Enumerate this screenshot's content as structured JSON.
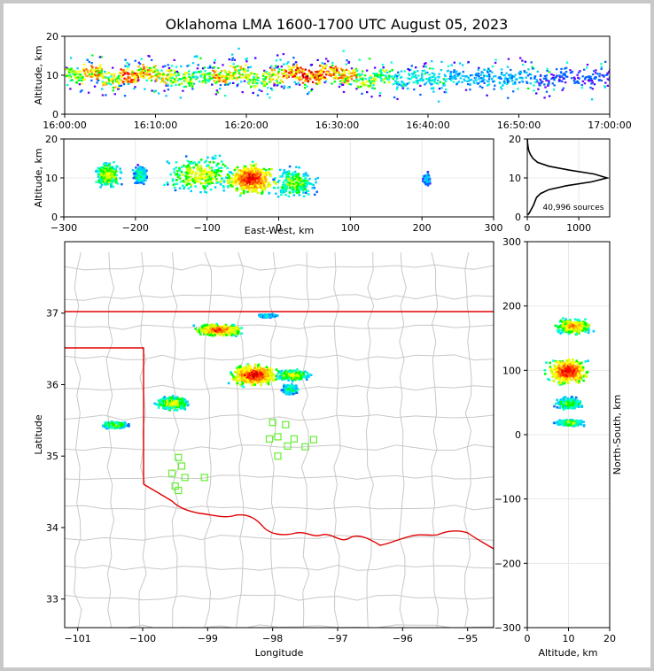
{
  "title": "Oklahoma LMA 1600-1700 UTC August 05, 2023",
  "chart_data": [
    {
      "id": "altitude-time",
      "type": "heatmap",
      "ylabel": "Altitude, km",
      "xlim": [
        "16:00:00",
        "17:00:00"
      ],
      "ylim": [
        0,
        20
      ],
      "x_ticks": [
        "16:00:00",
        "16:10:00",
        "16:20:00",
        "16:30:00",
        "16:40:00",
        "16:50:00",
        "17:00:00"
      ],
      "y_ticks": [
        "0",
        "10",
        "20"
      ],
      "cells": [
        {
          "t": 0,
          "z": 10,
          "v": 6
        },
        {
          "t": 2,
          "z": 11,
          "v": 8
        },
        {
          "t": 4,
          "z": 9,
          "v": 7
        },
        {
          "t": 6,
          "z": 10,
          "v": 9
        },
        {
          "t": 8,
          "z": 11,
          "v": 8
        },
        {
          "t": 10,
          "z": 10,
          "v": 7
        },
        {
          "t": 12,
          "z": 9,
          "v": 6
        },
        {
          "t": 14,
          "z": 10,
          "v": 5
        },
        {
          "t": 16,
          "z": 10,
          "v": 8
        },
        {
          "t": 18,
          "z": 11,
          "v": 7
        },
        {
          "t": 20,
          "z": 9,
          "v": 6
        },
        {
          "t": 22,
          "z": 10,
          "v": 7
        },
        {
          "t": 24,
          "z": 11,
          "v": 9
        },
        {
          "t": 26,
          "z": 10,
          "v": 10
        },
        {
          "t": 28,
          "z": 11,
          "v": 9
        },
        {
          "t": 30,
          "z": 10,
          "v": 8
        },
        {
          "t": 32,
          "z": 9,
          "v": 6
        },
        {
          "t": 34,
          "z": 10,
          "v": 5
        },
        {
          "t": 36,
          "z": 9,
          "v": 4
        },
        {
          "t": 38,
          "z": 10,
          "v": 4
        },
        {
          "t": 40,
          "z": 9,
          "v": 4
        },
        {
          "t": 42,
          "z": 10,
          "v": 3
        },
        {
          "t": 44,
          "z": 9,
          "v": 3
        },
        {
          "t": 46,
          "z": 10,
          "v": 3
        },
        {
          "t": 48,
          "z": 9,
          "v": 3
        },
        {
          "t": 50,
          "z": 10,
          "v": 3
        },
        {
          "t": 52,
          "z": 9,
          "v": 2
        },
        {
          "t": 54,
          "z": 10,
          "v": 2
        },
        {
          "t": 56,
          "z": 9,
          "v": 2
        },
        {
          "t": 58,
          "z": 10,
          "v": 2
        }
      ]
    },
    {
      "id": "altitude-east-west",
      "type": "heatmap",
      "xlabel": "East-West, km",
      "ylabel": "Altitude, km",
      "xlim": [
        -300,
        300
      ],
      "ylim": [
        0,
        20
      ],
      "x_ticks": [
        "−300",
        "−200",
        "−100",
        "0",
        "100",
        "200",
        "300"
      ],
      "y_ticks": [
        "0",
        "10",
        "20"
      ],
      "blobs": [
        {
          "x": -240,
          "z": 11,
          "rx": 22,
          "rz": 4,
          "v": 6
        },
        {
          "x": -195,
          "z": 11,
          "rx": 12,
          "rz": 3,
          "v": 4
        },
        {
          "x": -110,
          "z": 11,
          "rx": 60,
          "rz": 6,
          "v": 6
        },
        {
          "x": -40,
          "z": 10,
          "rx": 45,
          "rz": 5,
          "v": 10
        },
        {
          "x": 20,
          "z": 9,
          "rx": 35,
          "rz": 5,
          "v": 5
        },
        {
          "x": 205,
          "z": 10,
          "rx": 6,
          "rz": 2,
          "v": 2
        }
      ]
    },
    {
      "id": "altitude-histogram",
      "type": "line",
      "annotation": "40,996 sources",
      "xlim": [
        0,
        1600
      ],
      "ylim": [
        0,
        20
      ],
      "x_ticks": [
        "0",
        "1000"
      ],
      "y_ticks": [
        "0",
        "10",
        "20"
      ],
      "profile": [
        {
          "z": 0.5,
          "n": 10
        },
        {
          "z": 1,
          "n": 40
        },
        {
          "z": 2,
          "n": 80
        },
        {
          "z": 3,
          "n": 120
        },
        {
          "z": 4,
          "n": 150
        },
        {
          "z": 5,
          "n": 180
        },
        {
          "z": 6,
          "n": 260
        },
        {
          "z": 7,
          "n": 420
        },
        {
          "z": 8,
          "n": 760
        },
        {
          "z": 9,
          "n": 1250
        },
        {
          "z": 10,
          "n": 1550
        },
        {
          "z": 11,
          "n": 1300
        },
        {
          "z": 12,
          "n": 820
        },
        {
          "z": 13,
          "n": 420
        },
        {
          "z": 14,
          "n": 200
        },
        {
          "z": 15,
          "n": 110
        },
        {
          "z": 16,
          "n": 60
        },
        {
          "z": 17,
          "n": 30
        },
        {
          "z": 18,
          "n": 15
        },
        {
          "z": 19,
          "n": 6
        },
        {
          "z": 20,
          "n": 2
        }
      ]
    },
    {
      "id": "plan-view",
      "type": "heatmap",
      "xlabel": "Longitude",
      "ylabel": "Latitude",
      "xlim": [
        -101.2,
        -94.6
      ],
      "ylim": [
        32.6,
        38.0
      ],
      "x_ticks": [
        "−101",
        "−100",
        "−99",
        "−98",
        "−97",
        "−96",
        "−95"
      ],
      "y_ticks": [
        "33",
        "34",
        "35",
        "36",
        "37"
      ],
      "blobs": [
        {
          "lon": -100.45,
          "lat": 35.45,
          "rx": 0.25,
          "ry": 0.06,
          "v": 5
        },
        {
          "lon": -99.55,
          "lat": 35.75,
          "rx": 0.3,
          "ry": 0.12,
          "v": 6
        },
        {
          "lon": -98.85,
          "lat": 36.78,
          "rx": 0.45,
          "ry": 0.1,
          "v": 9
        },
        {
          "lon": -98.3,
          "lat": 36.15,
          "rx": 0.45,
          "ry": 0.18,
          "v": 10
        },
        {
          "lon": -97.7,
          "lat": 36.15,
          "rx": 0.3,
          "ry": 0.1,
          "v": 6
        },
        {
          "lon": -97.75,
          "lat": 35.95,
          "rx": 0.15,
          "ry": 0.08,
          "v": 4
        },
        {
          "lon": -98.1,
          "lat": 36.98,
          "rx": 0.18,
          "ry": 0.03,
          "v": 3
        }
      ],
      "stations": [
        {
          "lon": -99.45,
          "lat": 34.98
        },
        {
          "lon": -99.4,
          "lat": 34.86
        },
        {
          "lon": -99.55,
          "lat": 34.76
        },
        {
          "lon": -99.35,
          "lat": 34.7
        },
        {
          "lon": -99.05,
          "lat": 34.7
        },
        {
          "lon": -99.5,
          "lat": 34.58
        },
        {
          "lon": -99.45,
          "lat": 34.52
        },
        {
          "lon": -98.0,
          "lat": 35.47
        },
        {
          "lon": -97.8,
          "lat": 35.44
        },
        {
          "lon": -98.05,
          "lat": 35.24
        },
        {
          "lon": -97.92,
          "lat": 35.27
        },
        {
          "lon": -97.67,
          "lat": 35.24
        },
        {
          "lon": -97.37,
          "lat": 35.23
        },
        {
          "lon": -97.77,
          "lat": 35.14
        },
        {
          "lon": -97.5,
          "lat": 35.13
        },
        {
          "lon": -97.92,
          "lat": 35.0
        }
      ]
    },
    {
      "id": "north-south-altitude",
      "type": "heatmap",
      "xlabel": "Altitude, km",
      "ylabel": "North-South, km",
      "xlim": [
        0,
        20
      ],
      "ylim": [
        -300,
        300
      ],
      "x_ticks": [
        "0",
        "10",
        "20"
      ],
      "y_ticks": [
        "−300",
        "−200",
        "−100",
        "0",
        "100",
        "200",
        "300"
      ],
      "blobs": [
        {
          "z": 11,
          "y": 170,
          "rx": 5,
          "ry": 14,
          "v": 8
        },
        {
          "z": 9.5,
          "y": 100,
          "rx": 6,
          "ry": 25,
          "v": 10
        },
        {
          "z": 10,
          "y": 50,
          "rx": 4,
          "ry": 12,
          "v": 5
        },
        {
          "z": 10,
          "y": 20,
          "rx": 4,
          "ry": 6,
          "v": 5
        }
      ]
    }
  ]
}
